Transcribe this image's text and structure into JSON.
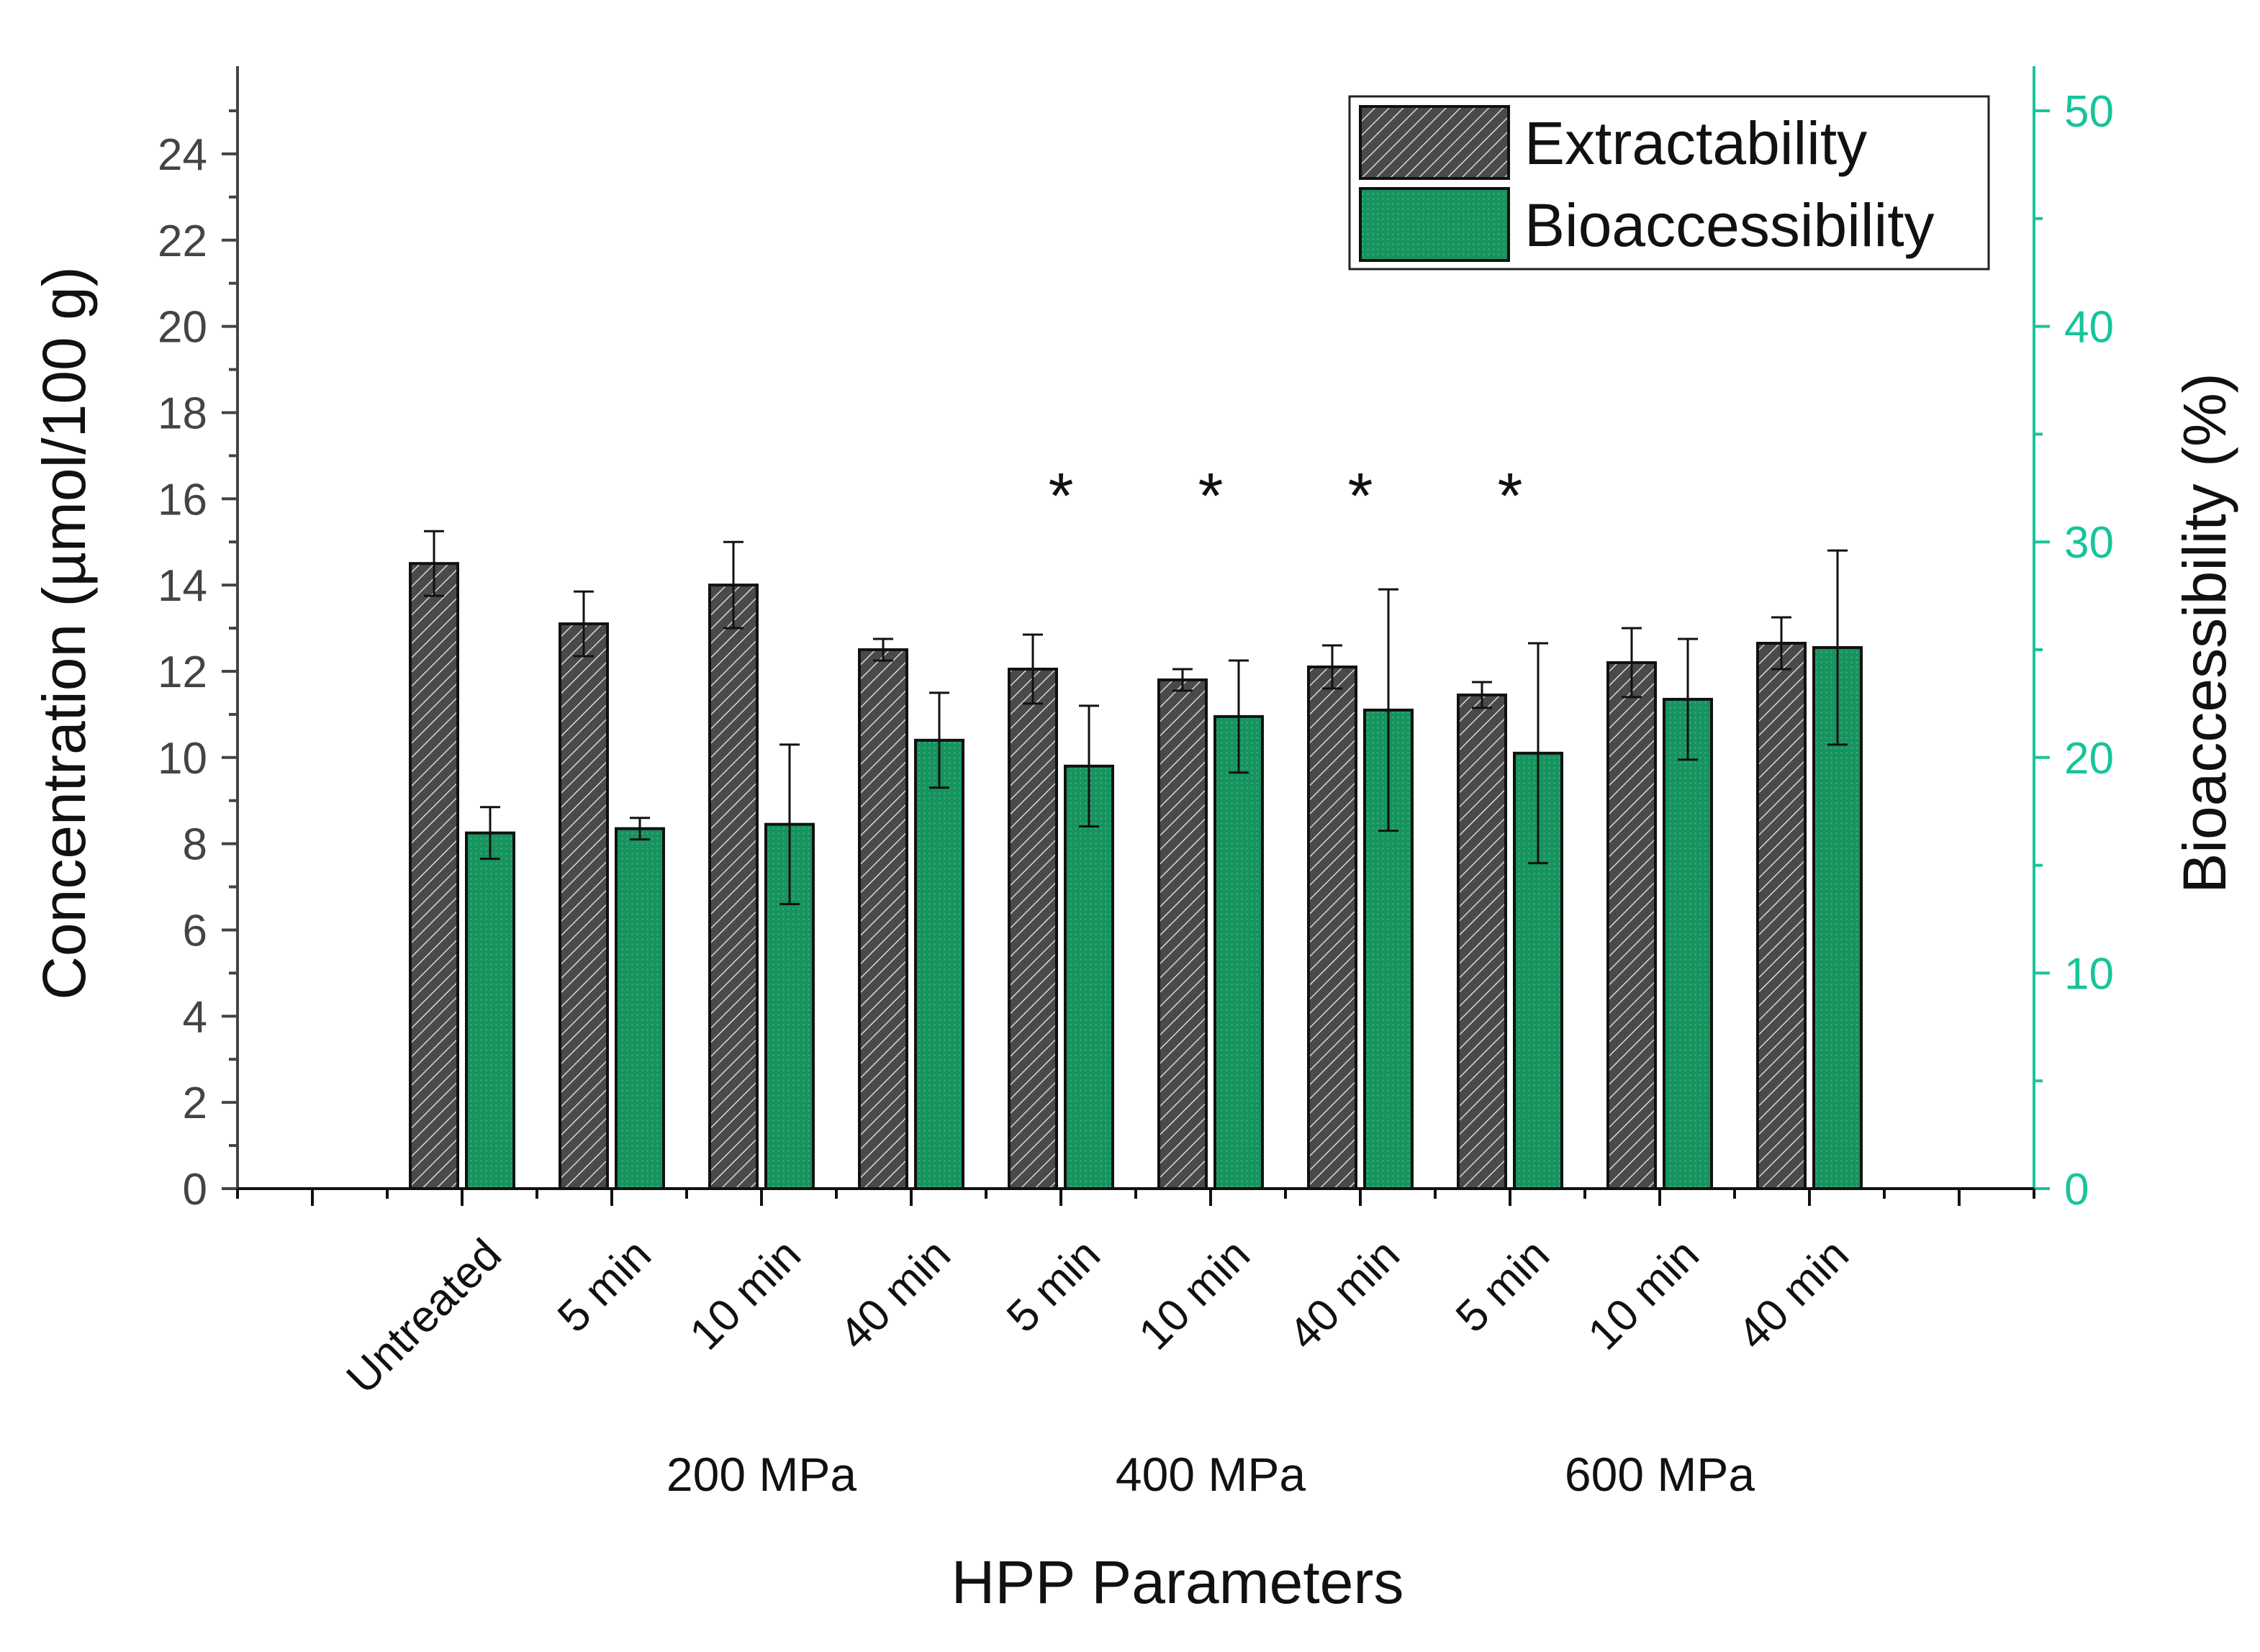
{
  "chart_data": {
    "type": "bar",
    "title": "",
    "xlabel": "HPP Parameters",
    "ylabel": "Concentration (µmol/100 g)",
    "y2label": "Bioaccessibility (%)",
    "ylim": [
      0,
      25
    ],
    "y2lim": [
      0,
      50
    ],
    "yticks": [
      "0",
      "2",
      "4",
      "6",
      "8",
      "10",
      "12",
      "14",
      "16",
      "18",
      "20",
      "22",
      "24"
    ],
    "y2ticks": [
      "0",
      "10",
      "20",
      "30",
      "40",
      "50"
    ],
    "categories": [
      "Untreated",
      "5 min",
      "10 min",
      "40 min",
      "5 min",
      "10 min",
      "40 min",
      "5 min",
      "10 min",
      "40 min"
    ],
    "groups": [
      {
        "label": "200 MPa",
        "from": 1,
        "to": 3
      },
      {
        "label": "400 MPa",
        "from": 4,
        "to": 6
      },
      {
        "label": "600 MPa",
        "from": 7,
        "to": 9
      }
    ],
    "series": [
      {
        "name": "Extractability",
        "axis": "left",
        "pattern": "hatched",
        "values": [
          14.5,
          13.1,
          14.0,
          12.5,
          12.05,
          11.8,
          12.1,
          11.45,
          12.2,
          12.65
        ],
        "errors": [
          0.75,
          0.75,
          1.0,
          0.25,
          0.8,
          0.25,
          0.5,
          0.3,
          0.8,
          0.6
        ]
      },
      {
        "name": "Bioaccessibility",
        "axis": "right",
        "pattern": "dotted",
        "values": [
          16.5,
          16.7,
          16.9,
          20.8,
          19.6,
          21.9,
          22.2,
          20.2,
          22.7,
          25.1
        ],
        "errors": [
          1.2,
          0.5,
          3.7,
          2.2,
          2.8,
          2.6,
          5.6,
          5.1,
          2.8,
          4.5
        ]
      }
    ],
    "annotations": [
      {
        "text": "*",
        "category_index": 4
      },
      {
        "text": "*",
        "category_index": 5
      },
      {
        "text": "*",
        "category_index": 6
      },
      {
        "text": "*",
        "category_index": 7
      }
    ],
    "legend_position": "top-right",
    "colors": {
      "extractability": "#4a4a4a",
      "bioaccessibility": "#17935e",
      "right_axis": "#17c49a",
      "left_axis": "#444444"
    }
  }
}
